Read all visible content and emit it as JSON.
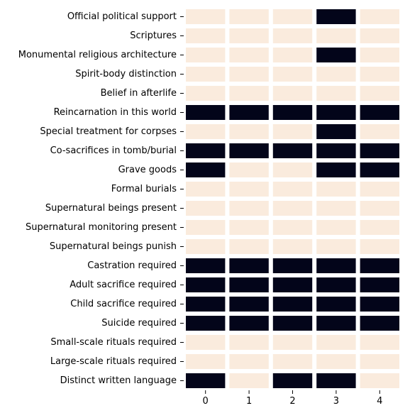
{
  "chart_data": {
    "type": "heatmap",
    "title": "",
    "xlabel": "",
    "ylabel": "",
    "x": [
      "0",
      "1",
      "2",
      "3",
      "4"
    ],
    "rows": [
      "Official political support",
      "Scriptures",
      "Monumental religious architecture",
      "Spirit-body distinction",
      "Belief in afterlife",
      "Reincarnation in this world",
      "Special treatment for corpses",
      "Co-sacrifices in tomb/burial",
      "Grave goods",
      "Formal burials",
      "Supernatural beings present",
      "Supernatural monitoring present",
      "Supernatural beings punish",
      "Castration required",
      "Adult sacrifice required",
      "Child sacrifice required",
      "Suicide required",
      "Small-scale rituals required",
      "Large-scale rituals required",
      "Distinct written language"
    ],
    "values": [
      [
        1,
        1,
        1,
        0,
        1
      ],
      [
        1,
        1,
        1,
        1,
        1
      ],
      [
        1,
        1,
        1,
        0,
        1
      ],
      [
        1,
        1,
        1,
        1,
        1
      ],
      [
        1,
        1,
        1,
        1,
        1
      ],
      [
        0,
        0,
        0,
        0,
        0
      ],
      [
        1,
        1,
        1,
        0,
        1
      ],
      [
        0,
        0,
        0,
        0,
        0
      ],
      [
        0,
        1,
        1,
        0,
        0
      ],
      [
        1,
        1,
        1,
        1,
        1
      ],
      [
        1,
        1,
        1,
        1,
        1
      ],
      [
        1,
        1,
        1,
        1,
        1
      ],
      [
        1,
        1,
        1,
        1,
        1
      ],
      [
        0,
        0,
        0,
        0,
        0
      ],
      [
        0,
        0,
        0,
        0,
        0
      ],
      [
        0,
        0,
        0,
        0,
        0
      ],
      [
        0,
        0,
        0,
        0,
        0
      ],
      [
        1,
        1,
        1,
        1,
        1
      ],
      [
        1,
        1,
        1,
        1,
        1
      ],
      [
        0,
        1,
        0,
        0,
        1
      ]
    ],
    "colors": {
      "0": "#03051a",
      "1": "#faebdd"
    },
    "grid": false,
    "legend": "none"
  }
}
